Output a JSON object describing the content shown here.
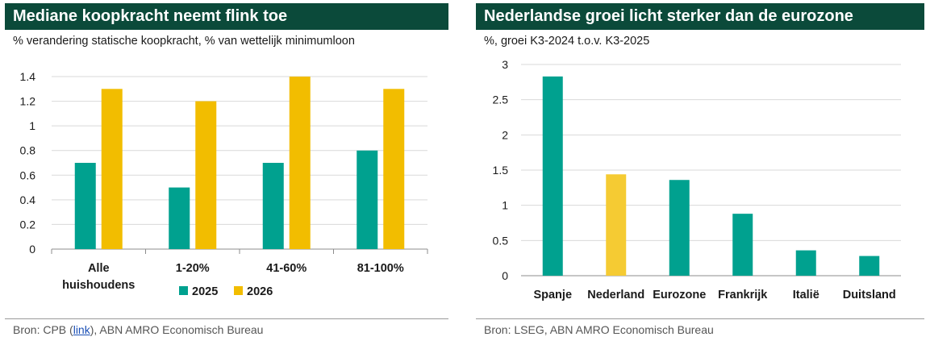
{
  "colors": {
    "teal": "#00a18f",
    "gold": "#f2bd00",
    "gold_highlight": "#f5cb33",
    "header_bg": "#0b4a3a"
  },
  "left": {
    "title": "Mediane koopkracht neemt flink toe",
    "subtitle": "% verandering statische koopkracht, % van wettelijk minimumloon",
    "source_prefix": "Bron: CPB (",
    "source_link": "link",
    "source_suffix": "), ABN AMRO Economisch Bureau"
  },
  "right": {
    "title": "Nederlandse groei licht sterker dan de eurozone",
    "subtitle": "%, groei K3-2024 t.o.v. K3-2025",
    "source": "Bron: LSEG, ABN AMRO Economisch Bureau"
  },
  "chart_data": [
    {
      "type": "bar",
      "title": "Mediane koopkracht neemt flink toe",
      "subtitle": "% verandering statische koopkracht, % van wettelijk minimumloon",
      "categories": [
        [
          "Alle",
          "huishoudens"
        ],
        [
          "1-20%"
        ],
        [
          "41-60%"
        ],
        [
          "81-100%"
        ]
      ],
      "series": [
        {
          "name": "2025",
          "values": [
            0.7,
            0.5,
            0.7,
            0.8
          ]
        },
        {
          "name": "2026",
          "values": [
            1.3,
            1.2,
            1.4,
            1.3
          ]
        }
      ],
      "ylim": [
        0,
        1.4
      ],
      "yticks": [
        0,
        0.2,
        0.4,
        0.6,
        0.8,
        1,
        1.2,
        1.4
      ],
      "ytick_labels": [
        "0",
        "0.2",
        "0.4",
        "0.6",
        "0.8",
        "1",
        "1.2",
        "1.4"
      ],
      "grid": true,
      "legend": "bottom-center"
    },
    {
      "type": "bar",
      "title": "Nederlandse groei licht sterker dan de eurozone",
      "subtitle": "%, groei K3-2024 t.o.v. K3-2025",
      "categories": [
        [
          "Spanje"
        ],
        [
          "Nederland"
        ],
        [
          "Eurozone"
        ],
        [
          "Frankrijk"
        ],
        [
          "Italië"
        ],
        [
          "Duitsland"
        ]
      ],
      "values": [
        2.83,
        1.44,
        1.36,
        0.88,
        0.36,
        0.28
      ],
      "highlight": "Nederland",
      "ylim": [
        0,
        3
      ],
      "yticks": [
        0,
        0.5,
        1,
        1.5,
        2,
        2.5,
        3
      ],
      "ytick_labels": [
        "0",
        "0.5",
        "1",
        "1.5",
        "2",
        "2.5",
        "3"
      ],
      "grid": true
    }
  ]
}
